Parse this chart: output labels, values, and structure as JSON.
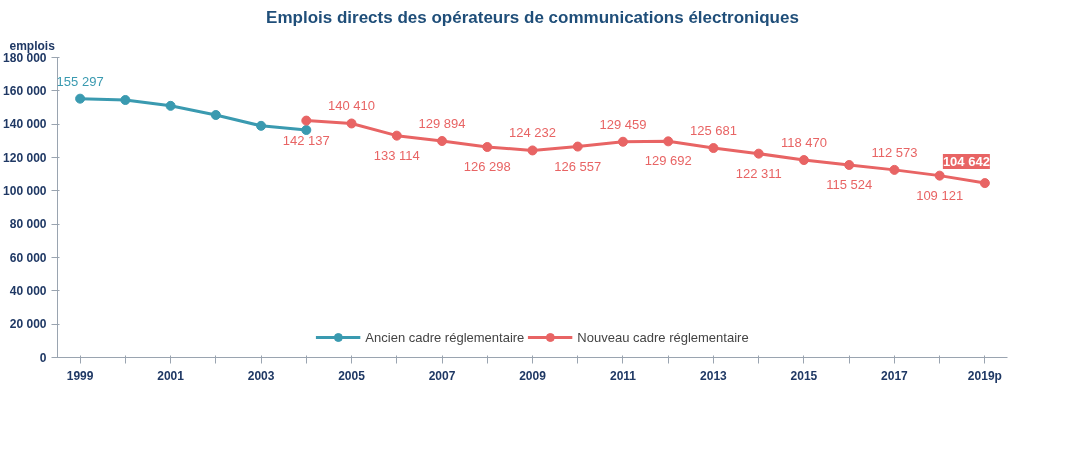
{
  "chart_data": {
    "type": "line",
    "title": "Emplois directs des opérateurs de communications électroniques",
    "ylabel": "emplois",
    "categories": [
      "1999",
      null,
      "2001",
      null,
      "2003",
      null,
      "2005",
      null,
      "2007",
      null,
      "2009",
      null,
      "2011",
      null,
      "2013",
      null,
      "2015",
      null,
      "2017",
      null,
      "2019p"
    ],
    "series": [
      {
        "name": "Ancien cadre réglementaire",
        "color": "#3a9ab0",
        "values": [
          155297,
          154500,
          151000,
          145500,
          139000,
          136500,
          null,
          null,
          null,
          null,
          null,
          null,
          null,
          null,
          null,
          null,
          null,
          null,
          null,
          null,
          null
        ],
        "value_labels": [
          "155 297",
          null,
          null,
          null,
          null,
          null,
          null,
          null,
          null,
          null,
          null,
          null,
          null,
          null,
          null,
          null,
          null,
          null,
          null,
          null,
          null
        ]
      },
      {
        "name": "Nouveau cadre réglementaire",
        "color": "#e86464",
        "values": [
          null,
          null,
          null,
          null,
          null,
          142137,
          140410,
          133114,
          129894,
          126298,
          124232,
          126557,
          129459,
          129692,
          125681,
          122311,
          118470,
          115524,
          112573,
          109121,
          104642
        ],
        "value_labels": [
          null,
          null,
          null,
          null,
          null,
          "142 137",
          "140 410",
          "133 114",
          "129 894",
          "126 298",
          "124 232",
          "126 557",
          "129 459",
          "129 692",
          "125 681",
          "122 311",
          "118 470",
          "115 524",
          "112 573",
          "109 121",
          "104 642"
        ]
      }
    ],
    "ylim": [
      0,
      180000
    ],
    "yticks": [
      {
        "value": 0,
        "label": "0"
      },
      {
        "value": 20000,
        "label": "20 000"
      },
      {
        "value": 40000,
        "label": "40 000"
      },
      {
        "value": 60000,
        "label": "60 000"
      },
      {
        "value": 80000,
        "label": "80 000"
      },
      {
        "value": 100000,
        "label": "100 000"
      },
      {
        "value": 120000,
        "label": "120 000"
      },
      {
        "value": 140000,
        "label": "140 000"
      },
      {
        "value": 160000,
        "label": "160 000"
      },
      {
        "value": 180000,
        "label": "180 000"
      }
    ],
    "marker": "circle",
    "grid": false,
    "legend": "bottom"
  }
}
